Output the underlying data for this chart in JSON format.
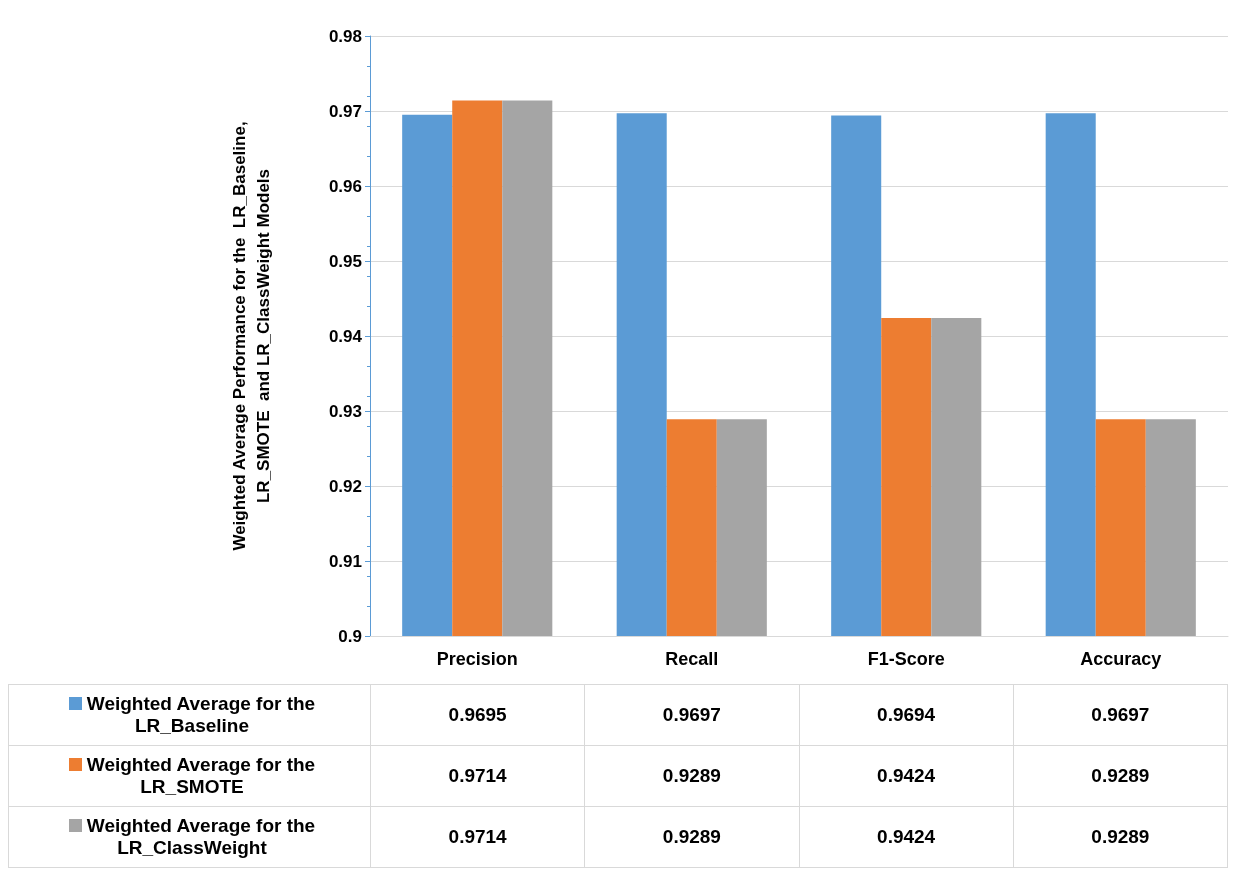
{
  "chart_data": {
    "type": "bar",
    "ylabel": "Weighted Average Performance for the  LR_Baseline,\nLR_SMOTE  and LR_ClassWeight Models",
    "categories": [
      "Precision",
      "Recall",
      "F1-Score",
      "Accuracy"
    ],
    "series": [
      {
        "name": "Weighted Average for the LR_Baseline",
        "color": "#5b9bd5",
        "values": [
          0.9695,
          0.9697,
          0.9694,
          0.9697
        ]
      },
      {
        "name": "Weighted Average for the LR_SMOTE",
        "color": "#ed7d31",
        "values": [
          0.9714,
          0.9289,
          0.9424,
          0.9289
        ]
      },
      {
        "name": "Weighted Average for the LR_ClassWeight",
        "color": "#a5a5a5",
        "values": [
          0.9714,
          0.9289,
          0.9424,
          0.9289
        ]
      }
    ],
    "ylim": [
      0.9,
      0.98
    ],
    "yticks": [
      0.9,
      0.91,
      0.92,
      0.93,
      0.94,
      0.95,
      0.96,
      0.97,
      0.98
    ],
    "grid": "y",
    "legend": "bottom",
    "data_labels": true
  }
}
